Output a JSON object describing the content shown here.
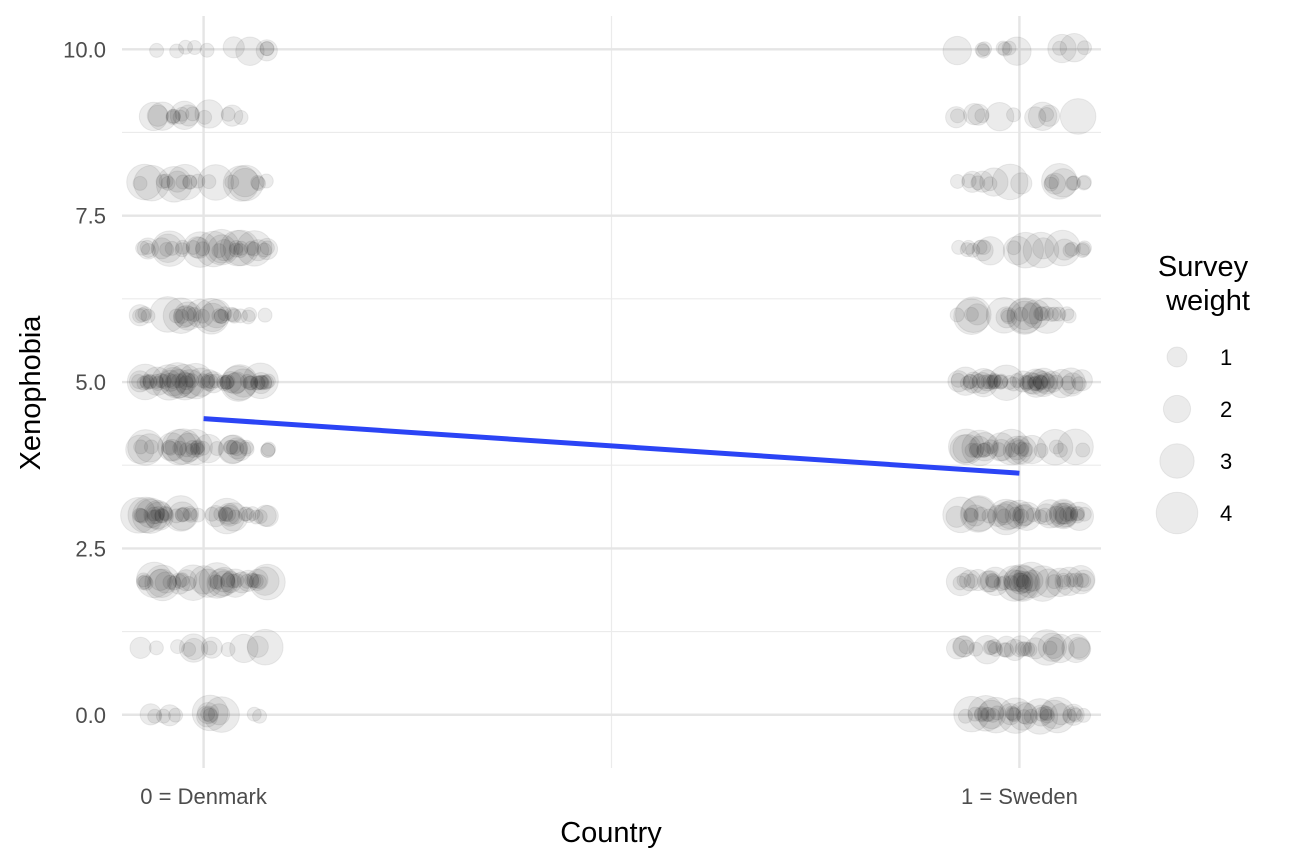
{
  "chart_data": {
    "type": "scatter",
    "xlabel": "Country",
    "ylabel": "Xenophobia",
    "categories": [
      "0 = Denmark",
      "1 = Sweden"
    ],
    "x_range": [
      -0.1,
      1.1
    ],
    "ylim": [
      -0.8,
      10.5
    ],
    "y_ticks": [
      0,
      2.5,
      5,
      7.5,
      10
    ],
    "y_tick_labels": [
      "0.0",
      "2.5",
      "5.0",
      "7.5",
      "10.0"
    ],
    "grid": true,
    "y_values": [
      0,
      1,
      2,
      3,
      4,
      5,
      6,
      7,
      8,
      9,
      10
    ],
    "points_per_level": {
      "0 = Denmark": [
        14,
        12,
        40,
        45,
        36,
        60,
        30,
        34,
        22,
        16,
        10
      ],
      "1 = Sweden": [
        35,
        28,
        40,
        40,
        30,
        50,
        24,
        20,
        18,
        12,
        12
      ]
    },
    "point_color": "#000000",
    "point_alpha": 0.08,
    "jitter_width": 0.08,
    "regression_line": {
      "color": "#2b44f5",
      "x": [
        0,
        1
      ],
      "y": [
        4.45,
        3.63
      ]
    },
    "legend": {
      "title_lines": [
        "Survey",
        "weight"
      ],
      "placement": "right",
      "sizes": [
        1,
        2,
        3,
        4
      ],
      "labels": [
        "1",
        "2",
        "3",
        "4"
      ]
    }
  }
}
